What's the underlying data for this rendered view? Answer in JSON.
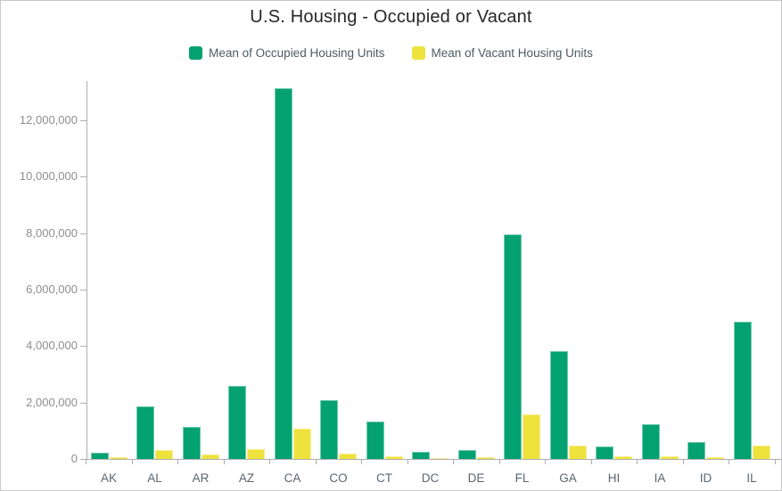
{
  "title": "U.S. Housing - Occupied or Vacant",
  "legend": {
    "items": [
      {
        "label": "Mean of Occupied Housing Units",
        "color": "#04a171"
      },
      {
        "label": "Mean of Vacant Housing Units",
        "color": "#efe23d"
      }
    ]
  },
  "colors": {
    "occupied": "#04a171",
    "vacant": "#efe23d",
    "axis_line": "#adadad",
    "y_label_text": "#8e8e8e",
    "x_label_text": "#5b6670",
    "title_text": "#262626",
    "legend_text": "#4c5b63",
    "frame_border": "#c9c9c9"
  },
  "chart_data": {
    "type": "bar",
    "title": "U.S. Housing - Occupied or Vacant",
    "categories": [
      "AK",
      "AL",
      "AR",
      "AZ",
      "CA",
      "CO",
      "CT",
      "DC",
      "DE",
      "FL",
      "GA",
      "HI",
      "IA",
      "ID",
      "IL"
    ],
    "series": [
      {
        "name": "Mean of Occupied Housing Units",
        "color": "#04a171",
        "values": [
          230000,
          1860000,
          1130000,
          2600000,
          13150000,
          2080000,
          1330000,
          240000,
          330000,
          7950000,
          3820000,
          430000,
          1220000,
          600000,
          4870000
        ]
      },
      {
        "name": "Mean of Vacant Housing Units",
        "color": "#efe23d",
        "values": [
          60000,
          330000,
          170000,
          350000,
          1060000,
          200000,
          90000,
          40000,
          55000,
          1580000,
          460000,
          85000,
          110000,
          60000,
          470000
        ]
      }
    ],
    "xlabel": "",
    "ylabel": "",
    "ylim": [
      0,
      13400000
    ],
    "ytick_step": 2000000,
    "ytick_values": [
      0,
      2000000,
      4000000,
      6000000,
      8000000,
      10000000,
      12000000
    ],
    "ytick_labels": [
      "0",
      "2,000,000",
      "4,000,000",
      "6,000,000",
      "8,000,000",
      "10,000,000",
      "12,000,000"
    ],
    "grid": false,
    "legend_position": "top"
  }
}
